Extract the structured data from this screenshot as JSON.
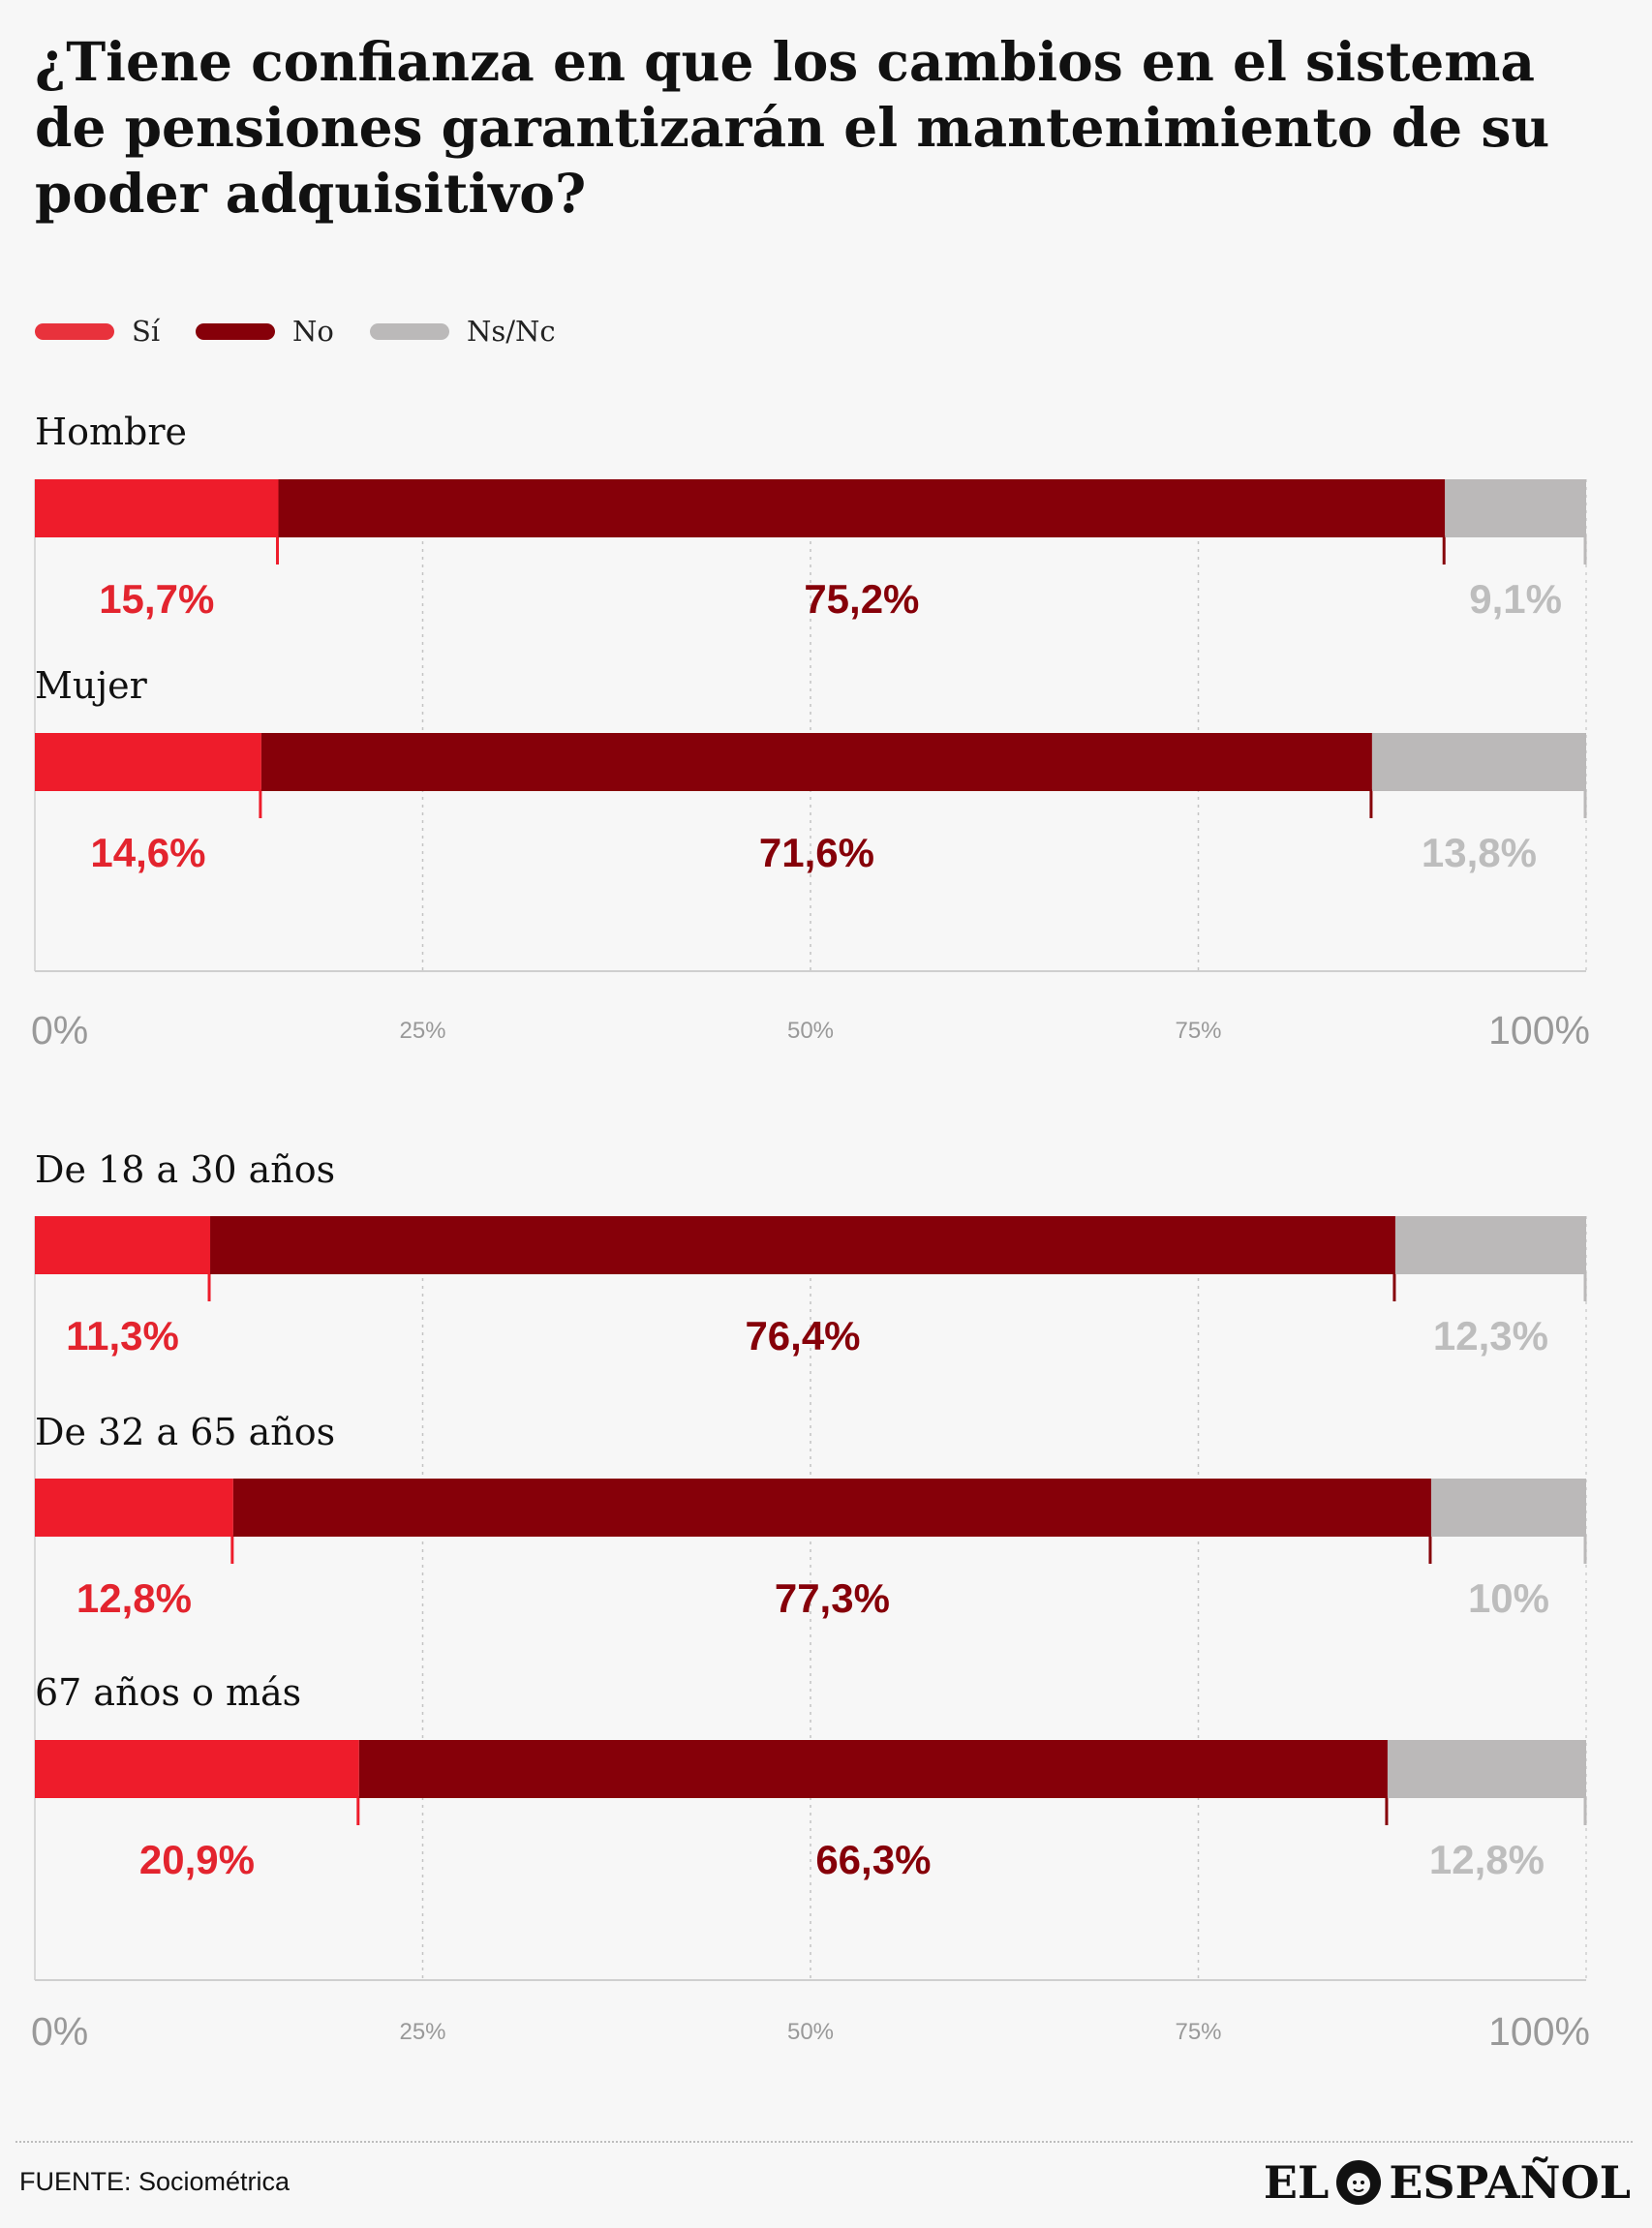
{
  "title": "¿Tiene confianza en que los cambios en el sistema de pensiones garantizarán el mantenimiento de su poder adquisitivo?",
  "legend": [
    {
      "label": "Sí",
      "color": "#e8323c"
    },
    {
      "label": "No",
      "color": "#860009"
    },
    {
      "label": "Ns/Nc",
      "color": "#bbb9b9"
    }
  ],
  "colors": {
    "si": "#ee1c2b",
    "no": "#860009",
    "nsnc": "#bbb9b9",
    "si_label": "#e3242e",
    "no_label": "#860009",
    "nsnc_label": "#bdbdbd"
  },
  "chart_data": [
    {
      "type": "bar",
      "orientation": "horizontal",
      "stacked": true,
      "categories": [
        "Hombre",
        "Mujer"
      ],
      "series": [
        {
          "name": "Sí",
          "values": [
            15.7,
            14.6
          ],
          "labels": [
            "15,7%",
            "14,6%"
          ]
        },
        {
          "name": "No",
          "values": [
            75.2,
            71.6
          ],
          "labels": [
            "75,2%",
            "71,6%"
          ]
        },
        {
          "name": "Ns/Nc",
          "values": [
            9.1,
            13.8
          ],
          "labels": [
            "9,1%",
            "13,8%"
          ]
        }
      ],
      "xlim": [
        0,
        100
      ],
      "ticks": [
        {
          "value": 0,
          "label": "0%"
        },
        {
          "value": 25,
          "label": "25%"
        },
        {
          "value": 50,
          "label": "50%"
        },
        {
          "value": 75,
          "label": "75%"
        },
        {
          "value": 100,
          "label": "100%"
        }
      ],
      "grid": true
    },
    {
      "type": "bar",
      "orientation": "horizontal",
      "stacked": true,
      "categories": [
        "De 18 a 30 años",
        "De 32 a 65 años",
        "67 años o más"
      ],
      "series": [
        {
          "name": "Sí",
          "values": [
            11.3,
            12.8,
            20.9
          ],
          "labels": [
            "11,3%",
            "12,8%",
            "20,9%"
          ]
        },
        {
          "name": "No",
          "values": [
            76.4,
            77.3,
            66.3
          ],
          "labels": [
            "76,4%",
            "77,3%",
            "66,3%"
          ]
        },
        {
          "name": "Ns/Nc",
          "values": [
            12.3,
            10,
            12.8
          ],
          "labels": [
            "12,3%",
            "10%",
            "12,8%"
          ]
        }
      ],
      "xlim": [
        0,
        100
      ],
      "ticks": [
        {
          "value": 0,
          "label": "0%"
        },
        {
          "value": 25,
          "label": "25%"
        },
        {
          "value": 50,
          "label": "50%"
        },
        {
          "value": 75,
          "label": "75%"
        },
        {
          "value": 100,
          "label": "100%"
        }
      ],
      "grid": true
    }
  ],
  "footer": {
    "source": "FUENTE: Sociométrica",
    "brand_left": "EL",
    "brand_right": "ESPAÑOL",
    "brand_icon": "lion-icon"
  }
}
